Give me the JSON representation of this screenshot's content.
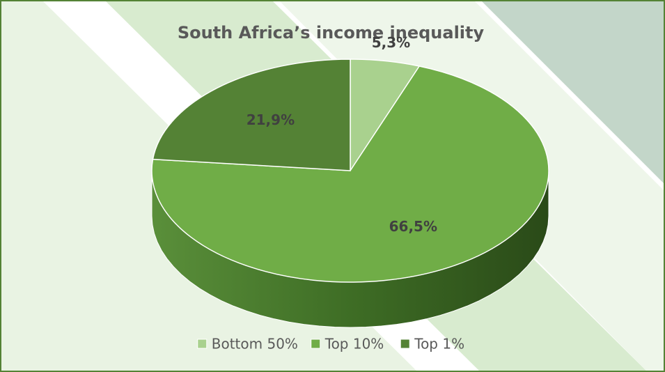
{
  "chart_data": {
    "type": "pie3d",
    "title": "South Africa’s income inequality",
    "categories": [
      "Bottom 50%",
      "Top 10%",
      "Top 1%"
    ],
    "values": [
      5.3,
      66.5,
      21.9
    ],
    "value_labels": [
      "5,3%",
      "66,5%",
      "21,9%"
    ],
    "colors": [
      "#a9d18e",
      "#70ad47",
      "#548235"
    ],
    "legend": "bottom"
  }
}
